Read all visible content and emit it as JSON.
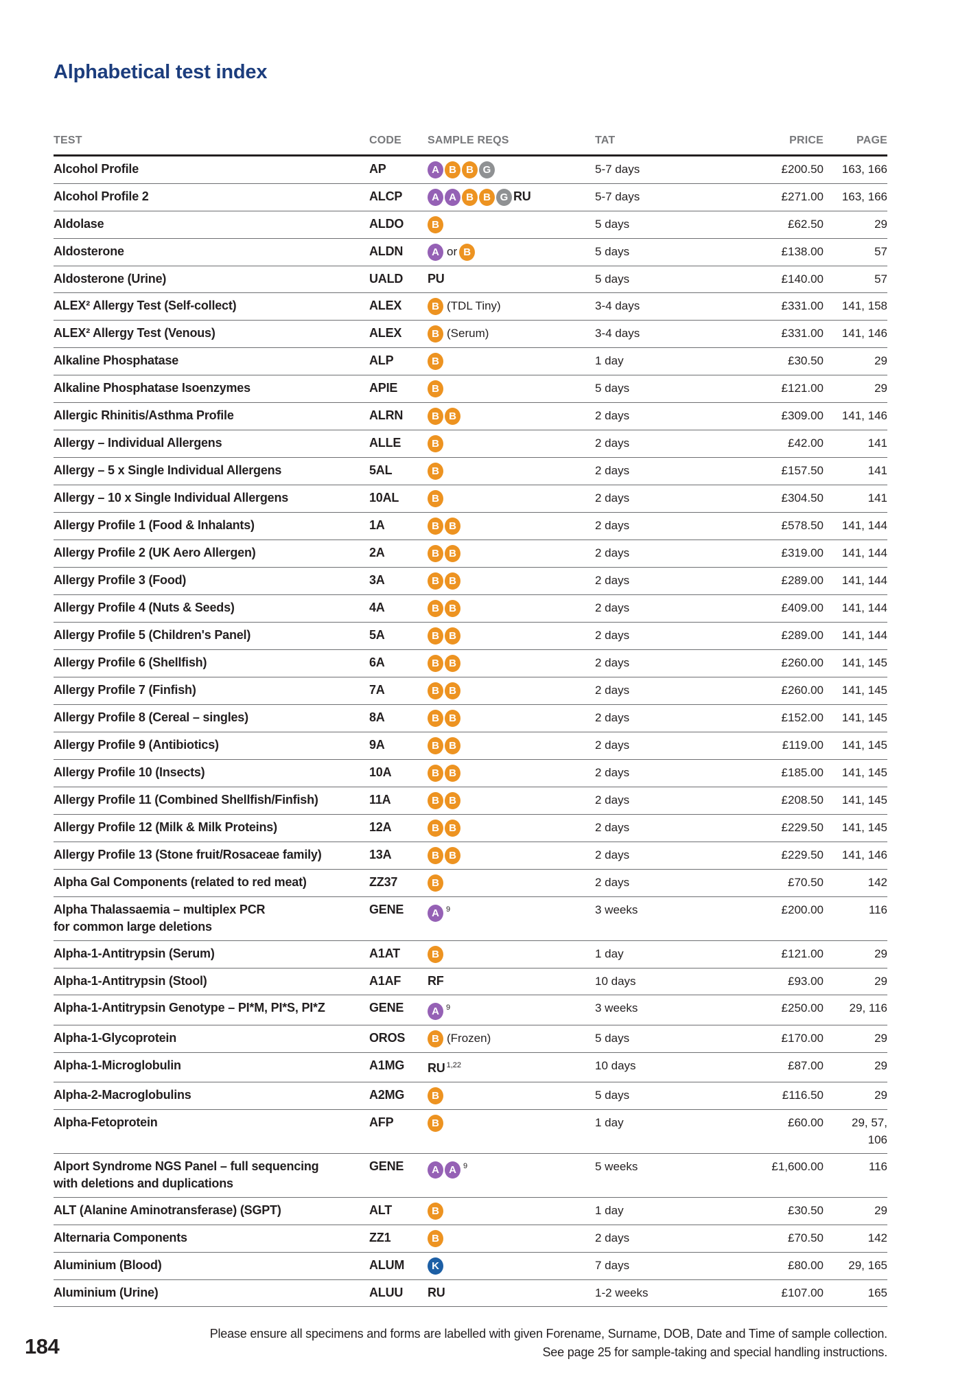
{
  "page": {
    "title": "Alphabetical test index",
    "page_number": "184",
    "footer_line1": "Please ensure all specimens and forms are labelled with given Forename, Surname, DOB, Date and Time of sample collection.",
    "footer_line2": "See page 25 for sample-taking and special handling instructions."
  },
  "colors": {
    "title_blue": "#1c3d7d",
    "header_gray": "#77787b",
    "rule_dark": "#231f20",
    "rule_row": "#6d6e71",
    "badges": {
      "A": "#9561b5",
      "B": "#ed9321",
      "G": "#8f9193",
      "K": "#1d5fa5"
    }
  },
  "table": {
    "headers": [
      "TEST",
      "CODE",
      "SAMPLE REQS",
      "TAT",
      "PRICE",
      "PAGE"
    ],
    "rows": [
      {
        "test": "Alcohol Profile",
        "code": "AP",
        "sample": [
          {
            "t": "b",
            "v": "A"
          },
          {
            "t": "b",
            "v": "B"
          },
          {
            "t": "b",
            "v": "B"
          },
          {
            "t": "b",
            "v": "G"
          }
        ],
        "tat": "5-7 days",
        "price": "£200.50",
        "page": "163, 166"
      },
      {
        "test": "Alcohol Profile 2",
        "code": "ALCP",
        "sample": [
          {
            "t": "b",
            "v": "A"
          },
          {
            "t": "b",
            "v": "A"
          },
          {
            "t": "b",
            "v": "B"
          },
          {
            "t": "b",
            "v": "B"
          },
          {
            "t": "b",
            "v": "G"
          },
          {
            "t": "s",
            "v": "RU"
          }
        ],
        "tat": "5-7 days",
        "price": "£271.00",
        "page": "163, 166"
      },
      {
        "test": "Aldolase",
        "code": "ALDO",
        "sample": [
          {
            "t": "b",
            "v": "B"
          }
        ],
        "tat": "5 days",
        "price": "£62.50",
        "page": "29"
      },
      {
        "test": "Aldosterone",
        "code": "ALDN",
        "sample": [
          {
            "t": "b",
            "v": "A"
          },
          {
            "t": "x",
            "v": "or"
          },
          {
            "t": "b",
            "v": "B"
          }
        ],
        "tat": "5 days",
        "price": "£138.00",
        "page": "57"
      },
      {
        "test": "Aldosterone (Urine)",
        "code": "UALD",
        "sample": [
          {
            "t": "s",
            "v": "PU"
          }
        ],
        "tat": "5 days",
        "price": "£140.00",
        "page": "57"
      },
      {
        "test": "ALEX² Allergy Test (Self-collect)",
        "code": "ALEX",
        "sample": [
          {
            "t": "b",
            "v": "B"
          },
          {
            "t": "n",
            "v": "(TDL Tiny)"
          }
        ],
        "tat": "3-4 days",
        "price": "£331.00",
        "page": "141, 158"
      },
      {
        "test": "ALEX² Allergy Test (Venous)",
        "code": "ALEX",
        "sample": [
          {
            "t": "b",
            "v": "B"
          },
          {
            "t": "n",
            "v": "(Serum)"
          }
        ],
        "tat": "3-4 days",
        "price": "£331.00",
        "page": "141, 146"
      },
      {
        "test": "Alkaline Phosphatase",
        "code": "ALP",
        "sample": [
          {
            "t": "b",
            "v": "B"
          }
        ],
        "tat": "1 day",
        "price": "£30.50",
        "page": "29"
      },
      {
        "test": "Alkaline Phosphatase Isoenzymes",
        "code": "APIE",
        "sample": [
          {
            "t": "b",
            "v": "B"
          }
        ],
        "tat": "5 days",
        "price": "£121.00",
        "page": "29"
      },
      {
        "test": "Allergic Rhinitis/Asthma Profile",
        "code": "ALRN",
        "sample": [
          {
            "t": "b",
            "v": "B"
          },
          {
            "t": "b",
            "v": "B"
          }
        ],
        "tat": "2 days",
        "price": "£309.00",
        "page": "141, 146"
      },
      {
        "test": "Allergy – Individual Allergens",
        "code": "ALLE",
        "sample": [
          {
            "t": "b",
            "v": "B"
          }
        ],
        "tat": "2 days",
        "price": "£42.00",
        "page": "141"
      },
      {
        "test": "Allergy – 5 x Single Individual Allergens",
        "code": "5AL",
        "sample": [
          {
            "t": "b",
            "v": "B"
          }
        ],
        "tat": "2 days",
        "price": "£157.50",
        "page": "141"
      },
      {
        "test": "Allergy – 10 x Single Individual Allergens",
        "code": "10AL",
        "sample": [
          {
            "t": "b",
            "v": "B"
          }
        ],
        "tat": "2 days",
        "price": "£304.50",
        "page": "141"
      },
      {
        "test": "Allergy Profile 1 (Food & Inhalants)",
        "code": "1A",
        "sample": [
          {
            "t": "b",
            "v": "B"
          },
          {
            "t": "b",
            "v": "B"
          }
        ],
        "tat": "2 days",
        "price": "£578.50",
        "page": "141, 144"
      },
      {
        "test": "Allergy Profile 2 (UK Aero Allergen)",
        "code": "2A",
        "sample": [
          {
            "t": "b",
            "v": "B"
          },
          {
            "t": "b",
            "v": "B"
          }
        ],
        "tat": "2 days",
        "price": "£319.00",
        "page": "141, 144"
      },
      {
        "test": "Allergy Profile 3 (Food)",
        "code": "3A",
        "sample": [
          {
            "t": "b",
            "v": "B"
          },
          {
            "t": "b",
            "v": "B"
          }
        ],
        "tat": "2 days",
        "price": "£289.00",
        "page": "141, 144"
      },
      {
        "test": "Allergy Profile 4 (Nuts & Seeds)",
        "code": "4A",
        "sample": [
          {
            "t": "b",
            "v": "B"
          },
          {
            "t": "b",
            "v": "B"
          }
        ],
        "tat": "2 days",
        "price": "£409.00",
        "page": "141, 144"
      },
      {
        "test": "Allergy Profile 5 (Children's Panel)",
        "code": "5A",
        "sample": [
          {
            "t": "b",
            "v": "B"
          },
          {
            "t": "b",
            "v": "B"
          }
        ],
        "tat": "2 days",
        "price": "£289.00",
        "page": "141, 144"
      },
      {
        "test": "Allergy Profile 6 (Shellfish)",
        "code": "6A",
        "sample": [
          {
            "t": "b",
            "v": "B"
          },
          {
            "t": "b",
            "v": "B"
          }
        ],
        "tat": "2 days",
        "price": "£260.00",
        "page": "141, 145"
      },
      {
        "test": "Allergy Profile 7 (Finfish)",
        "code": "7A",
        "sample": [
          {
            "t": "b",
            "v": "B"
          },
          {
            "t": "b",
            "v": "B"
          }
        ],
        "tat": "2 days",
        "price": "£260.00",
        "page": "141, 145"
      },
      {
        "test": "Allergy Profile 8 (Cereal – singles)",
        "code": "8A",
        "sample": [
          {
            "t": "b",
            "v": "B"
          },
          {
            "t": "b",
            "v": "B"
          }
        ],
        "tat": "2 days",
        "price": "£152.00",
        "page": "141, 145"
      },
      {
        "test": "Allergy Profile 9 (Antibiotics)",
        "code": "9A",
        "sample": [
          {
            "t": "b",
            "v": "B"
          },
          {
            "t": "b",
            "v": "B"
          }
        ],
        "tat": "2 days",
        "price": "£119.00",
        "page": "141, 145"
      },
      {
        "test": "Allergy Profile 10 (Insects)",
        "code": "10A",
        "sample": [
          {
            "t": "b",
            "v": "B"
          },
          {
            "t": "b",
            "v": "B"
          }
        ],
        "tat": "2 days",
        "price": "£185.00",
        "page": "141, 145"
      },
      {
        "test": "Allergy Profile 11 (Combined Shellfish/Finfish)",
        "code": "11A",
        "sample": [
          {
            "t": "b",
            "v": "B"
          },
          {
            "t": "b",
            "v": "B"
          }
        ],
        "tat": "2 days",
        "price": "£208.50",
        "page": "141, 145"
      },
      {
        "test": "Allergy Profile 12 (Milk & Milk Proteins)",
        "code": "12A",
        "sample": [
          {
            "t": "b",
            "v": "B"
          },
          {
            "t": "b",
            "v": "B"
          }
        ],
        "tat": "2 days",
        "price": "£229.50",
        "page": "141, 145"
      },
      {
        "test": "Allergy Profile 13 (Stone fruit/Rosaceae family)",
        "code": "13A",
        "sample": [
          {
            "t": "b",
            "v": "B"
          },
          {
            "t": "b",
            "v": "B"
          }
        ],
        "tat": "2 days",
        "price": "£229.50",
        "page": "141, 146"
      },
      {
        "test": "Alpha Gal Components (related to red meat)",
        "code": "ZZ37",
        "sample": [
          {
            "t": "b",
            "v": "B"
          }
        ],
        "tat": "2 days",
        "price": "£70.50",
        "page": "142"
      },
      {
        "test": "Alpha Thalassaemia – multiplex PCR",
        "test2": "for common large deletions",
        "code": "GENE",
        "sample": [
          {
            "t": "b",
            "v": "A"
          },
          {
            "t": "u",
            "v": "9"
          }
        ],
        "tat": "3 weeks",
        "price": "£200.00",
        "page": "116"
      },
      {
        "test": "Alpha-1-Antitrypsin (Serum)",
        "code": "A1AT",
        "sample": [
          {
            "t": "b",
            "v": "B"
          }
        ],
        "tat": "1 day",
        "price": "£121.00",
        "page": "29"
      },
      {
        "test": "Alpha-1-Antitrypsin (Stool)",
        "code": "A1AF",
        "sample": [
          {
            "t": "s",
            "v": "RF"
          }
        ],
        "tat": "10 days",
        "price": "£93.00",
        "page": "29"
      },
      {
        "test": "Alpha-1-Antitrypsin Genotype – PI*M, PI*S, PI*Z",
        "code": "GENE",
        "sample": [
          {
            "t": "b",
            "v": "A"
          },
          {
            "t": "u",
            "v": "9"
          }
        ],
        "tat": "3 weeks",
        "price": "£250.00",
        "page": "29, 116"
      },
      {
        "test": "Alpha-1-Glycoprotein",
        "code": "OROS",
        "sample": [
          {
            "t": "b",
            "v": "B"
          },
          {
            "t": "n",
            "v": "(Frozen)"
          }
        ],
        "tat": "5 days",
        "price": "£170.00",
        "page": "29"
      },
      {
        "test": "Alpha-1-Microglobulin",
        "code": "A1MG",
        "sample": [
          {
            "t": "s",
            "v": "RU"
          },
          {
            "t": "u",
            "v": "1,22"
          }
        ],
        "tat": "10 days",
        "price": "£87.00",
        "page": "29"
      },
      {
        "test": "Alpha-2-Macroglobulins",
        "code": "A2MG",
        "sample": [
          {
            "t": "b",
            "v": "B"
          }
        ],
        "tat": "5 days",
        "price": "£116.50",
        "page": "29"
      },
      {
        "test": "Alpha-Fetoprotein",
        "code": "AFP",
        "sample": [
          {
            "t": "b",
            "v": "B"
          }
        ],
        "tat": "1 day",
        "price": "£60.00",
        "page": "29, 57,",
        "page2": "106"
      },
      {
        "test": "Alport Syndrome NGS Panel – full sequencing",
        "test2": "with deletions and duplications",
        "code": "GENE",
        "sample": [
          {
            "t": "b",
            "v": "A"
          },
          {
            "t": "b",
            "v": "A"
          },
          {
            "t": "u",
            "v": "9"
          }
        ],
        "tat": "5 weeks",
        "price": "£1,600.00",
        "page": "116"
      },
      {
        "test": "ALT (Alanine Aminotransferase) (SGPT)",
        "code": "ALT",
        "sample": [
          {
            "t": "b",
            "v": "B"
          }
        ],
        "tat": "1 day",
        "price": "£30.50",
        "page": "29"
      },
      {
        "test": "Alternaria Components",
        "code": "ZZ1",
        "sample": [
          {
            "t": "b",
            "v": "B"
          }
        ],
        "tat": "2 days",
        "price": "£70.50",
        "page": "142"
      },
      {
        "test": "Aluminium (Blood)",
        "code": "ALUM",
        "sample": [
          {
            "t": "b",
            "v": "K"
          }
        ],
        "tat": "7 days",
        "price": "£80.00",
        "page": "29, 165"
      },
      {
        "test": "Aluminium (Urine)",
        "code": "ALUU",
        "sample": [
          {
            "t": "s",
            "v": "RU"
          }
        ],
        "tat": "1-2 weeks",
        "price": "£107.00",
        "page": "165"
      }
    ]
  }
}
